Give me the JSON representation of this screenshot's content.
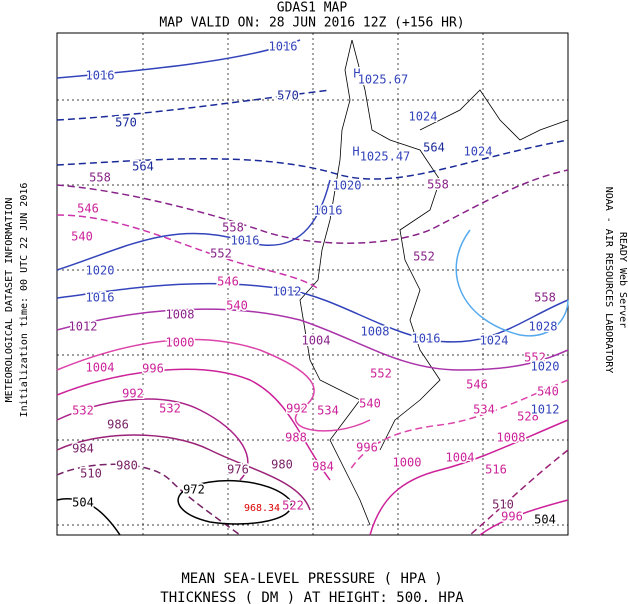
{
  "header": {
    "title": "GDAS1 MAP",
    "subtitle": "MAP VALID ON: 28 JUN 2016 12Z (+156 HR)"
  },
  "side": {
    "left_title": "METEOROLOGICAL DATASET INFORMATION",
    "left_info": "Initialization time: 00 UTC 22 JUN 2016",
    "right_title": "NOAA - AIR RESOURCES LABORATORY",
    "right_info": "READY Web Server"
  },
  "footer": {
    "line1": "MEAN SEA-LEVEL PRESSURE ( HPA )",
    "line2": "THICKNESS ( DM ) AT HEIGHT: 500. HPA"
  },
  "map": {
    "labels": [
      "1016",
      "1016",
      "H",
      "1025.67",
      "570",
      "570",
      "1024",
      "H",
      "1025.47",
      "564",
      "1024",
      "564",
      "558",
      "1020",
      "558",
      "546",
      "1016",
      "540",
      "558",
      "1016",
      "552",
      "552",
      "1020",
      "546",
      "1016",
      "1012",
      "558",
      "540",
      "1012",
      "1028",
      "1008",
      "1008",
      "1016",
      "1024",
      "1000",
      "1004",
      "552",
      "1020",
      "1004",
      "996",
      "552",
      "546",
      "992",
      "540",
      "532",
      "532",
      "992",
      "534",
      "540",
      "534",
      "528",
      "1012",
      "986",
      "988",
      "996",
      "984",
      "1008",
      "976",
      "980",
      "984",
      "1000",
      "1004",
      "980",
      "510",
      "516",
      "972",
      "968.34",
      "522",
      "504",
      "510",
      "996",
      "504"
    ]
  }
}
